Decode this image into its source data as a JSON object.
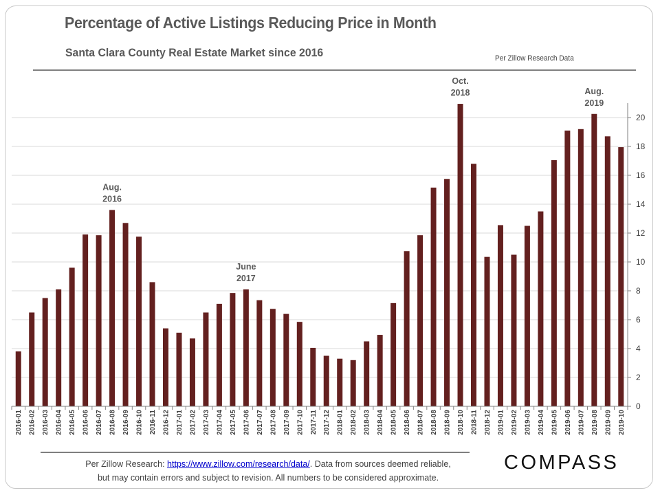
{
  "header": {
    "title": "Percentage of Active Listings Reducing Price in Month",
    "subtitle": "Santa Clara County Real Estate Market since 2016",
    "source_note": "Per Zillow Research Data"
  },
  "footer": {
    "prefix": "Per Zillow Research: ",
    "link_text": "https://www.zillow.com/research/data/",
    "suffix": ". Data from sources deemed reliable,",
    "line2": "but may contain errors and subject to revision.  All numbers to be considered approximate.",
    "logo_text": "COMPASS"
  },
  "colors": {
    "bar": "#63201f",
    "grid": "#d9d9d9",
    "axis": "#808080"
  },
  "chart_data": {
    "type": "bar",
    "title": "Percentage of Active Listings Reducing Price in Month",
    "subtitle": "Santa Clara County Real Estate Market since 2016",
    "xlabel": "",
    "ylabel": "",
    "ylim": [
      0,
      21
    ],
    "yticks": [
      0,
      2,
      4,
      6,
      8,
      10,
      12,
      14,
      16,
      18,
      20
    ],
    "y_axis_side": "right",
    "grid": true,
    "legend": "none",
    "categories": [
      "2016-01",
      "2016-02",
      "2016-03",
      "2016-04",
      "2016-05",
      "2016-06",
      "2016-07",
      "2016-08",
      "2016-09",
      "2016-10",
      "2016-11",
      "2016-12",
      "2017-01",
      "2017-02",
      "2017-03",
      "2017-04",
      "2017-05",
      "2017-06",
      "2017-07",
      "2017-08",
      "2017-09",
      "2017-10",
      "2017-11",
      "2017-12",
      "2018-01",
      "2018-02",
      "2018-03",
      "2018-04",
      "2018-05",
      "2018-06",
      "2018-07",
      "2018-08",
      "2018-09",
      "2018-10",
      "2018-11",
      "2018-12",
      "2019-01",
      "2019-02",
      "2019-03",
      "2019-04",
      "2019-05",
      "2019-06",
      "2019-07",
      "2019-08",
      "2019-09",
      "2019-10"
    ],
    "values": [
      3.8,
      6.5,
      7.5,
      8.1,
      9.6,
      11.9,
      11.85,
      13.6,
      12.7,
      11.75,
      8.6,
      5.4,
      5.1,
      4.7,
      6.5,
      7.1,
      7.85,
      8.1,
      7.35,
      6.75,
      6.4,
      5.85,
      4.05,
      3.5,
      3.3,
      3.2,
      4.5,
      4.95,
      7.15,
      10.75,
      11.85,
      15.15,
      15.75,
      20.95,
      16.8,
      10.35,
      12.55,
      10.5,
      12.5,
      13.5,
      17.05,
      19.1,
      19.2,
      20.25,
      18.7,
      17.95
    ],
    "annotations": [
      {
        "category": "2016-08",
        "lines": [
          "Aug.",
          "2016"
        ]
      },
      {
        "category": "2017-06",
        "lines": [
          "June",
          "2017"
        ]
      },
      {
        "category": "2018-10",
        "lines": [
          "Oct.",
          "2018"
        ]
      },
      {
        "category": "2019-08",
        "lines": [
          "Aug.",
          "2019"
        ]
      }
    ]
  }
}
